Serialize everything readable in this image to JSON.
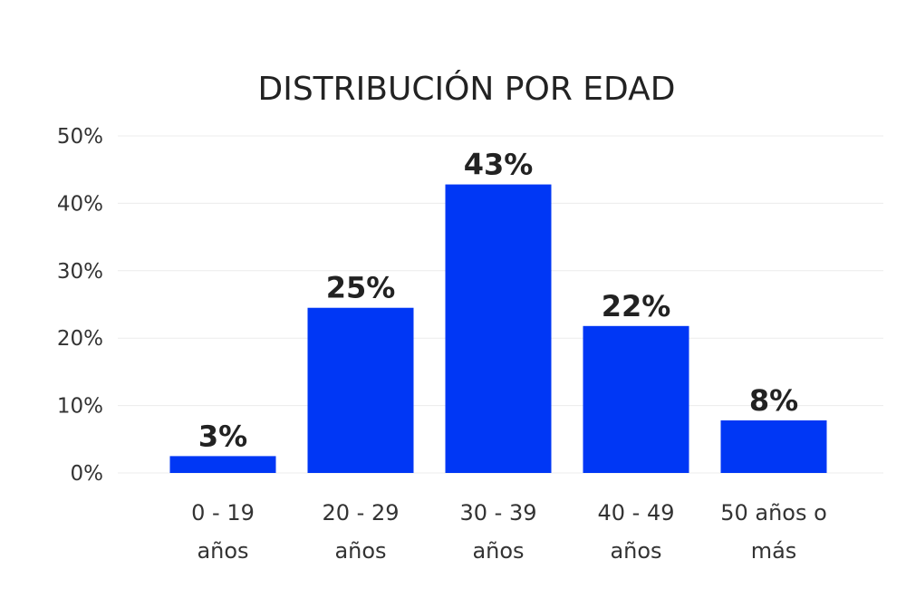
{
  "chart_data": {
    "type": "bar",
    "title": "DISTRIBUCIÓN POR EDAD",
    "categories": [
      [
        "0 - 19",
        "años"
      ],
      [
        "20 - 29",
        "años"
      ],
      [
        "30 - 39",
        "años"
      ],
      [
        "40 - 49",
        "años"
      ],
      [
        "50 años o",
        "más"
      ]
    ],
    "values": [
      2.5,
      24.5,
      42.8,
      21.8,
      7.8
    ],
    "data_labels": [
      "3%",
      "25%",
      "43%",
      "22%",
      "8%"
    ],
    "yticks": [
      "0%",
      "10%",
      "20%",
      "30%",
      "40%",
      "50%"
    ],
    "ylim": [
      0,
      50
    ],
    "xlabel": "",
    "ylabel": "",
    "grid": true,
    "bar_color": "#0037F5"
  }
}
